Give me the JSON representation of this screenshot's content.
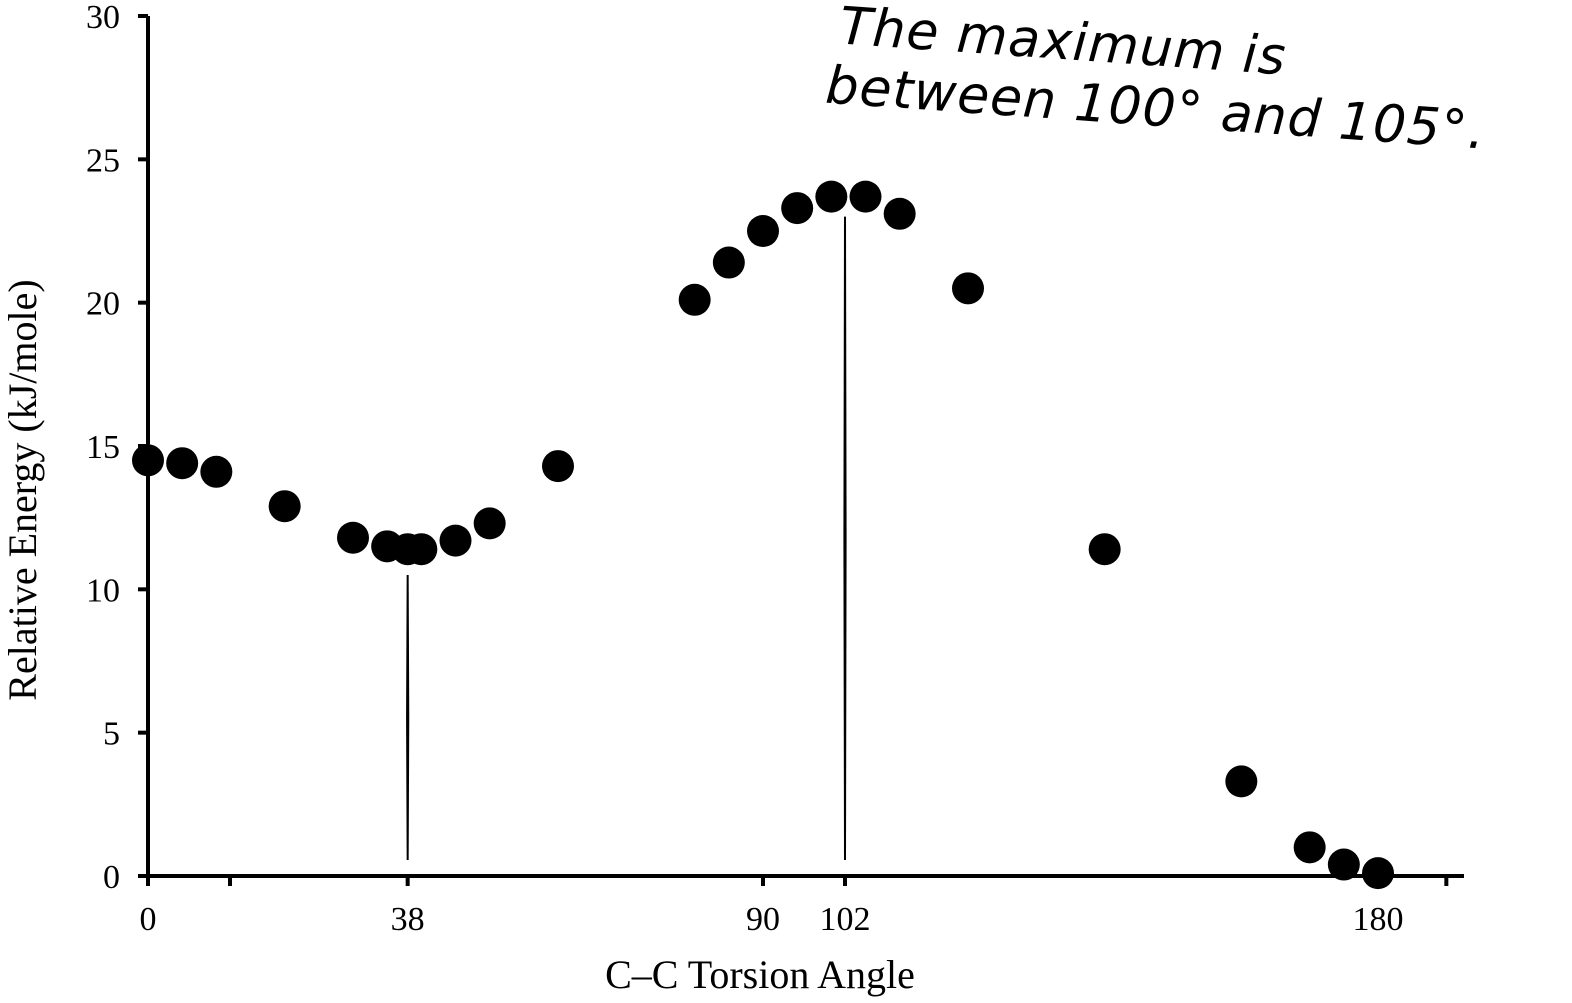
{
  "chart_data": {
    "type": "scatter",
    "title": "",
    "xlabel": "C–C Torsion Angle",
    "ylabel": "Relative Energy (kJ/mole)",
    "xlim": [
      0,
      190
    ],
    "ylim": [
      0,
      30
    ],
    "yticks": [
      0,
      5,
      10,
      15,
      20,
      25,
      30
    ],
    "xticks_labeled": [
      0,
      38,
      90,
      102,
      180
    ],
    "xticks_unlabeled": [
      12,
      190
    ],
    "grid": false,
    "legend": "none",
    "marker_color": "#000000",
    "series": [
      {
        "x": [
          0,
          5,
          10,
          20,
          30,
          35,
          38,
          40,
          45,
          50,
          60,
          80,
          85,
          90,
          95,
          100,
          105,
          110,
          120,
          140,
          160,
          170,
          175,
          180
        ],
        "y": [
          14.5,
          14.4,
          14.1,
          12.9,
          11.8,
          11.5,
          11.4,
          11.4,
          11.7,
          12.3,
          14.3,
          20.1,
          21.4,
          22.5,
          23.3,
          23.7,
          23.7,
          23.1,
          20.5,
          11.4,
          3.3,
          1.0,
          0.4,
          0.1
        ]
      }
    ],
    "reference_lines": [
      {
        "x": 38,
        "y_top": 10.5
      },
      {
        "x": 102,
        "y_top": 23.0
      }
    ],
    "annotation": {
      "line1": "The maximum is",
      "line2": "between 100° and 105°."
    }
  }
}
